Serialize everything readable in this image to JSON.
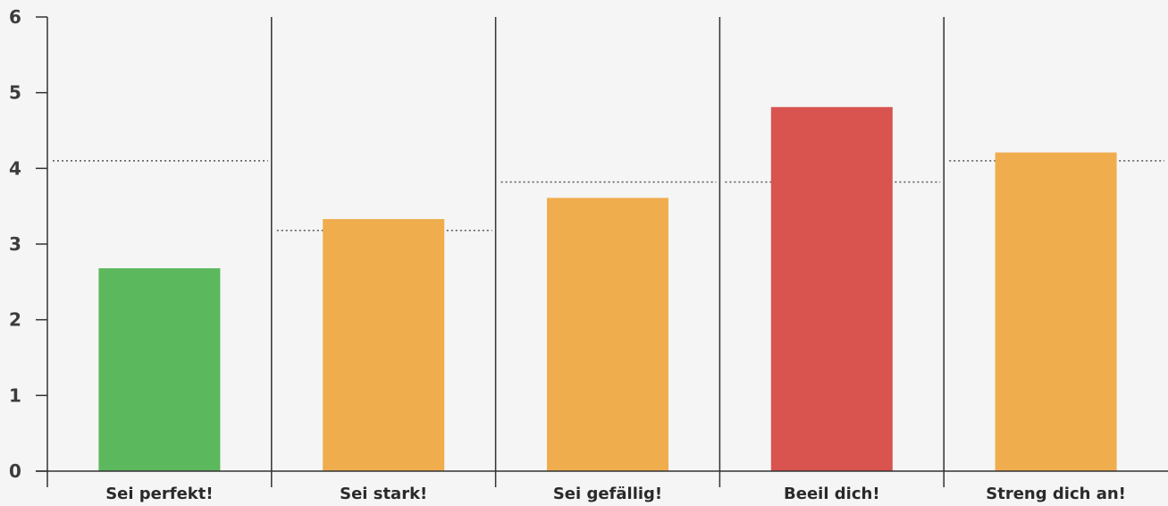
{
  "chart_data": {
    "type": "bar",
    "title": "",
    "xlabel": "",
    "ylabel": "",
    "ylim": [
      0,
      6
    ],
    "yticks": [
      0,
      1,
      2,
      3,
      4,
      5,
      6
    ],
    "grid": "vertical category separators",
    "legend": "none",
    "categories": [
      "Sei perfekt!",
      "Sei stark!",
      "Sei gefällig!",
      "Beeil dich!",
      "Streng dich an!"
    ],
    "values": [
      2.68,
      3.33,
      3.61,
      4.81,
      4.21
    ],
    "reference_values": [
      4.1,
      3.18,
      3.82,
      3.82,
      4.1
    ],
    "bar_colors": [
      "#5cb85c",
      "#f0ad4e",
      "#f0ad4e",
      "#d9534f",
      "#f0ad4e"
    ],
    "colors": {
      "axis": "#333333",
      "reference_line": "#555555",
      "background": "#f5f5f5"
    }
  }
}
